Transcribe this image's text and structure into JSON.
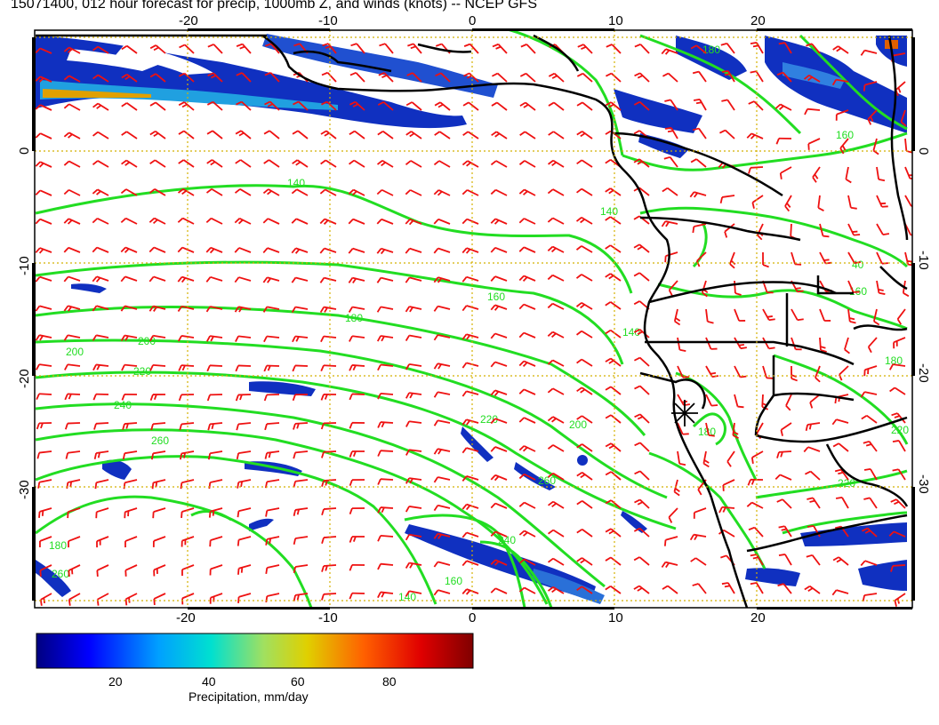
{
  "title": "15071400, 012 hour forecast for precip, 1000mb Z, and winds (knots) -- NCEP GFS",
  "axes": {
    "lon_top": [
      "-20",
      "-10",
      "0",
      "10",
      "20"
    ],
    "lon_bottom": [
      "-20",
      "-10",
      "0",
      "10",
      "20"
    ],
    "lat_left": [
      "0",
      "-10",
      "-20",
      "-30"
    ],
    "lat_right": [
      "0",
      "-10",
      "-20",
      "-30"
    ]
  },
  "contour_labels": [
    "140",
    "140",
    "160",
    "180",
    "200",
    "220",
    "240",
    "260",
    "200",
    "220",
    "240",
    "260",
    "260",
    "140",
    "160",
    "180",
    "160",
    "180",
    "200",
    "220",
    "220",
    "140",
    "160",
    "40",
    "180",
    "180"
  ],
  "colorbar": {
    "title": "Precipitation, mm/day",
    "ticks": [
      "20",
      "40",
      "60",
      "80"
    ],
    "colors": [
      "#000080",
      "#0000ff",
      "#00a0ff",
      "#00e0d0",
      "#a0e060",
      "#e0d000",
      "#ff6000",
      "#e00000",
      "#800000"
    ]
  },
  "colors": {
    "contour": "#22dd22",
    "wind_barb": "#ee1111",
    "grid": "#d4b000",
    "coast": "#000000"
  }
}
